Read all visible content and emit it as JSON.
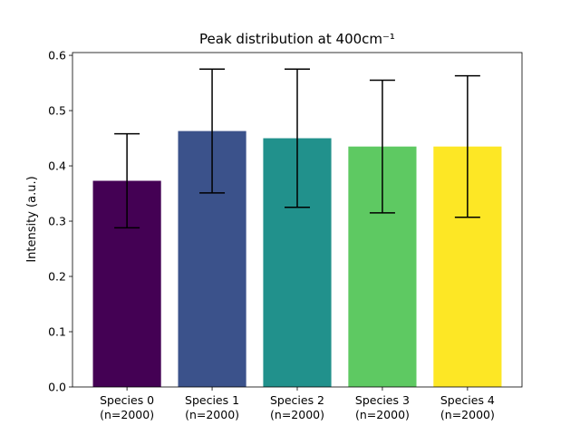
{
  "chart_data": {
    "type": "bar",
    "title": "Peak distribution at 400cm⁻¹",
    "y_label": "Intensity (a.u.)",
    "categories": [
      "Species 0\n(n=2000)",
      "Species 1\n(n=2000)",
      "Species 2\n(n=2000)",
      "Species 3\n(n=2000)",
      "Species 4\n(n=2000)"
    ],
    "values": [
      0.373,
      0.463,
      0.45,
      0.435,
      0.435
    ],
    "errors": [
      0.085,
      0.112,
      0.125,
      0.12,
      0.128
    ],
    "colors": [
      "#440154",
      "#3b528b",
      "#21918c",
      "#5ec962",
      "#fde725"
    ],
    "ylim": [
      0,
      0.605
    ],
    "yticks": [
      {
        "value": 0,
        "label": "0.0"
      },
      0.1,
      0.2,
      0.3,
      0.4,
      0.5,
      0.6
    ]
  }
}
